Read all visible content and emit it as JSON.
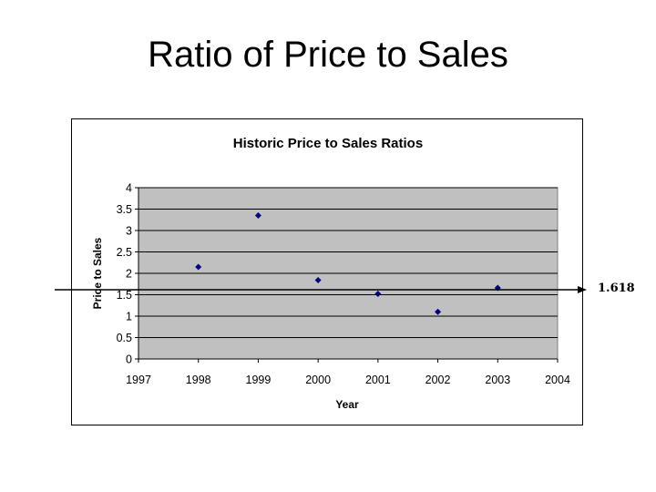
{
  "slide": {
    "title": "Ratio of Price to Sales"
  },
  "chart_data": {
    "type": "scatter",
    "title": "Historic Price to Sales Ratios",
    "xlabel": "Year",
    "ylabel": "Price to Sales",
    "xlim": [
      1997,
      2004
    ],
    "ylim": [
      0,
      4
    ],
    "x_ticks": [
      1997,
      1998,
      1999,
      2000,
      2001,
      2002,
      2003,
      2004
    ],
    "y_ticks": [
      0,
      0.5,
      1,
      1.5,
      2,
      2.5,
      3,
      3.5,
      4
    ],
    "grid": true,
    "legend": "none",
    "plot_background": "#c0c0c0",
    "marker_color": "#000080",
    "points": [
      {
        "x": 1998,
        "y": 2.15
      },
      {
        "x": 1999,
        "y": 3.35
      },
      {
        "x": 2000,
        "y": 1.84
      },
      {
        "x": 2001,
        "y": 1.52
      },
      {
        "x": 2002,
        "y": 1.1
      },
      {
        "x": 2003,
        "y": 1.66
      }
    ],
    "reference_line": {
      "y": 1.618,
      "label": "1.618",
      "color": "#000000"
    }
  }
}
